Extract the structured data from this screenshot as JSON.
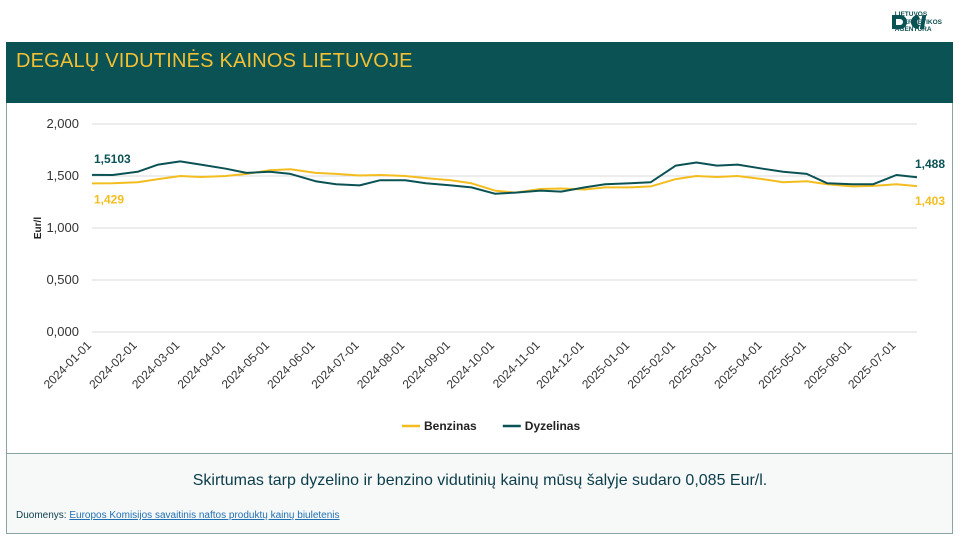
{
  "header": {
    "logo_name": "lea-logo-icon",
    "logo_lines": [
      "LIETUVOS",
      "ENERGETIKOS",
      "AGENTŪRA"
    ]
  },
  "title": "DEGALŲ VIDUTINĖS KAINOS LIETUVOJE",
  "summary": "Skirtumas tarp dyzelino ir benzino vidutinių kainų mūsų šalyje sudaro 0,085 Eur/l.",
  "source": {
    "prefix": "Duomenys: ",
    "link_text": "Europos Komisijos savaitinis naftos produktų kainų biuletenis"
  },
  "colors": {
    "benzinas": "#f3bd1f",
    "dyzelinas": "#0b5254",
    "title": "#f3c033"
  },
  "chart_data": {
    "type": "line",
    "ylabel": "Eur/l",
    "ylim": [
      0,
      2
    ],
    "yticks": [
      "0,000",
      "0,500",
      "1,000",
      "1,500",
      "2,000"
    ],
    "xticks": [
      "2024-01-01",
      "2024-02-01",
      "2024-03-01",
      "2024-04-01",
      "2024-05-01",
      "2024-06-01",
      "2024-07-01",
      "2024-08-01",
      "2024-09-01",
      "2024-10-01",
      "2024-11-01",
      "2024-12-01",
      "2025-01-01",
      "2025-02-01",
      "2025-03-01",
      "2025-04-01",
      "2025-05-01",
      "2025-06-01",
      "2025-07-01"
    ],
    "x_start": "2024-01-01",
    "x_end": "2025-07-15",
    "legend_position": "bottom",
    "series": [
      {
        "name": "Benzinas",
        "color": "#f3bd1f",
        "points": [
          [
            "2024-01-01",
            1.429
          ],
          [
            "2024-01-15",
            1.43
          ],
          [
            "2024-02-01",
            1.44
          ],
          [
            "2024-02-15",
            1.47
          ],
          [
            "2024-03-01",
            1.5
          ],
          [
            "2024-03-15",
            1.49
          ],
          [
            "2024-04-01",
            1.5
          ],
          [
            "2024-04-15",
            1.52
          ],
          [
            "2024-05-01",
            1.555
          ],
          [
            "2024-05-15",
            1.565
          ],
          [
            "2024-06-01",
            1.53
          ],
          [
            "2024-06-15",
            1.52
          ],
          [
            "2024-07-01",
            1.505
          ],
          [
            "2024-07-15",
            1.51
          ],
          [
            "2024-08-01",
            1.5
          ],
          [
            "2024-08-15",
            1.48
          ],
          [
            "2024-09-01",
            1.46
          ],
          [
            "2024-09-15",
            1.43
          ],
          [
            "2024-10-01",
            1.36
          ],
          [
            "2024-10-15",
            1.34
          ],
          [
            "2024-11-01",
            1.375
          ],
          [
            "2024-11-15",
            1.38
          ],
          [
            "2024-12-01",
            1.37
          ],
          [
            "2024-12-15",
            1.39
          ],
          [
            "2025-01-01",
            1.39
          ],
          [
            "2025-01-15",
            1.4
          ],
          [
            "2025-02-01",
            1.47
          ],
          [
            "2025-02-15",
            1.5
          ],
          [
            "2025-03-01",
            1.49
          ],
          [
            "2025-03-15",
            1.5
          ],
          [
            "2025-04-01",
            1.47
          ],
          [
            "2025-04-15",
            1.44
          ],
          [
            "2025-05-01",
            1.45
          ],
          [
            "2025-05-15",
            1.42
          ],
          [
            "2025-06-01",
            1.4
          ],
          [
            "2025-06-15",
            1.405
          ],
          [
            "2025-07-01",
            1.42
          ],
          [
            "2025-07-15",
            1.403
          ]
        ],
        "start_label": "1,429",
        "end_label": "1,403"
      },
      {
        "name": "Dyzelinas",
        "color": "#0b5254",
        "points": [
          [
            "2024-01-01",
            1.5103
          ],
          [
            "2024-01-15",
            1.51
          ],
          [
            "2024-02-01",
            1.54
          ],
          [
            "2024-02-15",
            1.61
          ],
          [
            "2024-03-01",
            1.64
          ],
          [
            "2024-03-15",
            1.61
          ],
          [
            "2024-04-01",
            1.57
          ],
          [
            "2024-04-15",
            1.53
          ],
          [
            "2024-05-01",
            1.54
          ],
          [
            "2024-05-15",
            1.52
          ],
          [
            "2024-06-01",
            1.45
          ],
          [
            "2024-06-15",
            1.42
          ],
          [
            "2024-07-01",
            1.41
          ],
          [
            "2024-07-15",
            1.46
          ],
          [
            "2024-08-01",
            1.46
          ],
          [
            "2024-08-15",
            1.43
          ],
          [
            "2024-09-01",
            1.41
          ],
          [
            "2024-09-15",
            1.39
          ],
          [
            "2024-10-01",
            1.33
          ],
          [
            "2024-10-15",
            1.34
          ],
          [
            "2024-11-01",
            1.36
          ],
          [
            "2024-11-15",
            1.35
          ],
          [
            "2024-12-01",
            1.39
          ],
          [
            "2024-12-15",
            1.42
          ],
          [
            "2025-01-01",
            1.43
          ],
          [
            "2025-01-15",
            1.44
          ],
          [
            "2025-02-01",
            1.6
          ],
          [
            "2025-02-15",
            1.63
          ],
          [
            "2025-03-01",
            1.6
          ],
          [
            "2025-03-15",
            1.61
          ],
          [
            "2025-04-01",
            1.57
          ],
          [
            "2025-04-15",
            1.54
          ],
          [
            "2025-05-01",
            1.52
          ],
          [
            "2025-05-15",
            1.43
          ],
          [
            "2025-06-01",
            1.42
          ],
          [
            "2025-06-15",
            1.42
          ],
          [
            "2025-07-01",
            1.51
          ],
          [
            "2025-07-15",
            1.488
          ]
        ],
        "start_label": "1,5103",
        "end_label": "1,488"
      }
    ]
  }
}
